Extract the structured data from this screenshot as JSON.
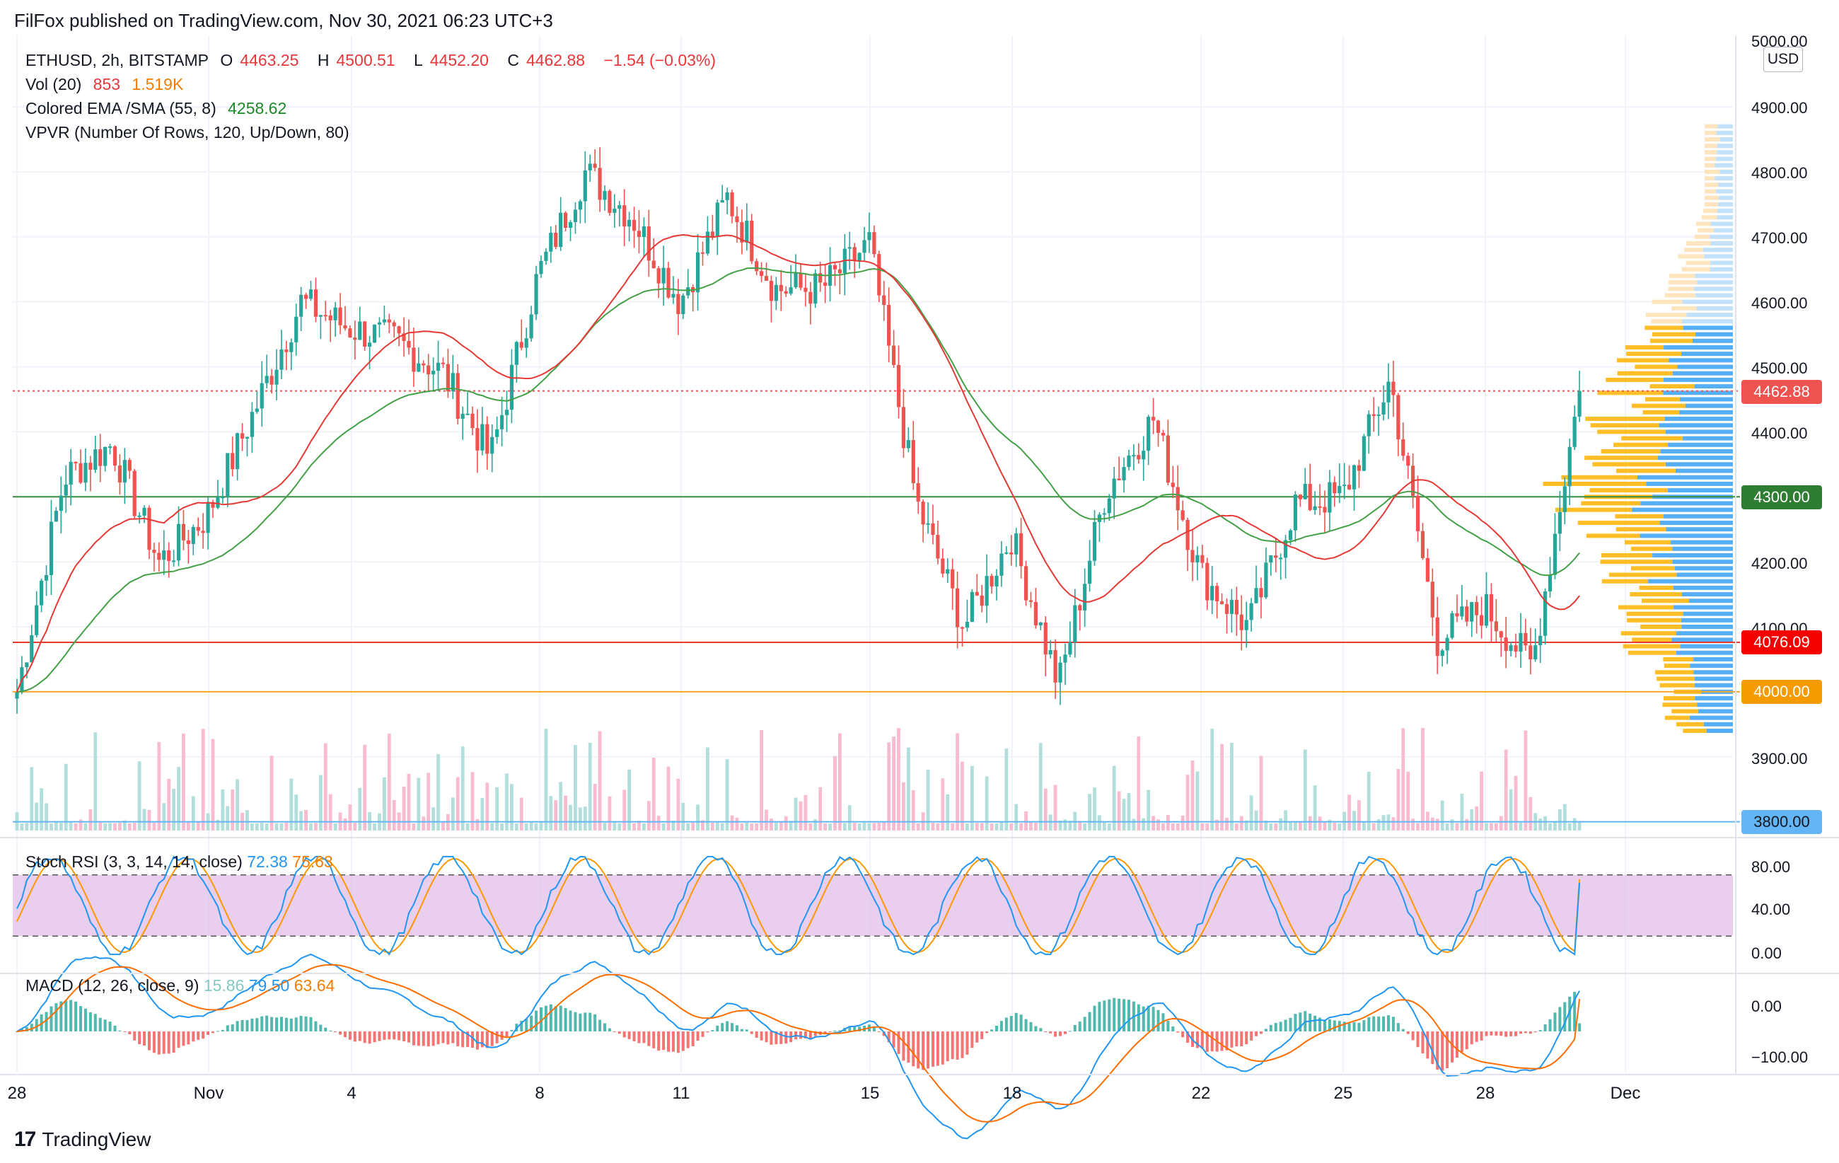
{
  "header": {
    "publisher_line": "FilFox published on TradingView.com, Nov 30, 2021 06:23 UTC+3"
  },
  "legend": {
    "symbol": "ETHUSD, 2h, BITSTAMP",
    "open_label": "O",
    "open": "4463.25",
    "high_label": "H",
    "high": "4500.51",
    "low_label": "L",
    "low": "4452.20",
    "close_label": "C",
    "close": "4462.88",
    "change": "−1.54 (−0.03%)",
    "vol_label": "Vol (20)",
    "vol_value": "853",
    "vol_ma": "1.519K",
    "ema_label": "Colored EMA /SMA (55, 8)",
    "ema_value": "4258.62",
    "vpvr_label": "VPVR (Number Of Rows, 120, Up/Down, 80)"
  },
  "stoch_rsi": {
    "label": "Stoch RSI (3, 3, 14, 14, close)",
    "k": "72.38",
    "d": "75.63"
  },
  "macd": {
    "label": "MACD (12, 26, close, 9)",
    "hist": "15.86",
    "macd": "79.50",
    "signal": "63.64"
  },
  "currency": "USD",
  "price_axis": {
    "labels": [
      "5000.00",
      "4900.00",
      "4800.00",
      "4700.00",
      "4600.00",
      "4500.00",
      "4400.00",
      "4200.00",
      "4100.00",
      "3900.00"
    ]
  },
  "price_tags": {
    "current": "4462.88",
    "green_level": "4300.00",
    "red_level": "4076.09",
    "orange_level": "4000.00",
    "blue_level": "3800.00"
  },
  "stoch_axis": [
    "80.00",
    "40.00",
    "0.00"
  ],
  "macd_axis": [
    "0.00",
    "−100.00"
  ],
  "time_axis": [
    "28",
    "Nov",
    "4",
    "8",
    "11",
    "15",
    "18",
    "22",
    "25",
    "28",
    "Dec"
  ],
  "colors": {
    "up": "#26a69a",
    "down": "#ef5350",
    "ema": "#43a047",
    "sma": "#e53935",
    "green_line": "#388e3c",
    "red_line": "#e53935",
    "orange_line": "#f9a825",
    "blue_line": "#64b5f6",
    "stoch_bg": "#e1bee7",
    "stoch_k": "#2196f3",
    "stoch_d": "#ff9800",
    "macd_line": "#2196f3",
    "signal_line": "#ff6d00"
  },
  "brand": "TradingView",
  "chart_data": {
    "type": "candlestick",
    "symbol": "ETHUSD",
    "interval": "2h",
    "x_ticks": [
      "28",
      "Nov",
      "4",
      "8",
      "11",
      "15",
      "18",
      "22",
      "25",
      "28",
      "Dec"
    ],
    "ylim": [
      3780,
      5010
    ],
    "horizontal_levels": [
      4300.0,
      4076.09,
      4000.0,
      3800.0
    ],
    "last_price": 4462.88,
    "close_path_approx": [
      {
        "x": "28",
        "y": 4000
      },
      {
        "x": "29",
        "y": 4330
      },
      {
        "x": "30",
        "y": 4380
      },
      {
        "x": "31",
        "y": 4200
      },
      {
        "x": "Nov",
        "y": 4270
      },
      {
        "x": "2",
        "y": 4430
      },
      {
        "x": "3",
        "y": 4600
      },
      {
        "x": "4",
        "y": 4560
      },
      {
        "x": "5",
        "y": 4540
      },
      {
        "x": "6",
        "y": 4490
      },
      {
        "x": "7",
        "y": 4360
      },
      {
        "x": "8",
        "y": 4640
      },
      {
        "x": "9",
        "y": 4800
      },
      {
        "x": "10",
        "y": 4730
      },
      {
        "x": "11",
        "y": 4600
      },
      {
        "x": "12",
        "y": 4760
      },
      {
        "x": "13",
        "y": 4620
      },
      {
        "x": "14",
        "y": 4620
      },
      {
        "x": "15",
        "y": 4690
      },
      {
        "x": "16",
        "y": 4290
      },
      {
        "x": "17",
        "y": 4100
      },
      {
        "x": "18",
        "y": 4240
      },
      {
        "x": "19",
        "y": 4010
      },
      {
        "x": "20",
        "y": 4310
      },
      {
        "x": "21",
        "y": 4420
      },
      {
        "x": "22",
        "y": 4180
      },
      {
        "x": "23",
        "y": 4100
      },
      {
        "x": "24",
        "y": 4290
      },
      {
        "x": "25",
        "y": 4300
      },
      {
        "x": "26",
        "y": 4480
      },
      {
        "x": "27",
        "y": 4080
      },
      {
        "x": "28",
        "y": 4130
      },
      {
        "x": "29",
        "y": 4040
      },
      {
        "x": "30",
        "y": 4462.88
      }
    ],
    "ema_55": 4258.62,
    "stoch_rsi": {
      "k": 72.38,
      "d": 75.63,
      "upper": 80,
      "lower": 20
    },
    "macd": {
      "macd": 79.5,
      "signal": 63.64,
      "hist": 15.86
    }
  }
}
